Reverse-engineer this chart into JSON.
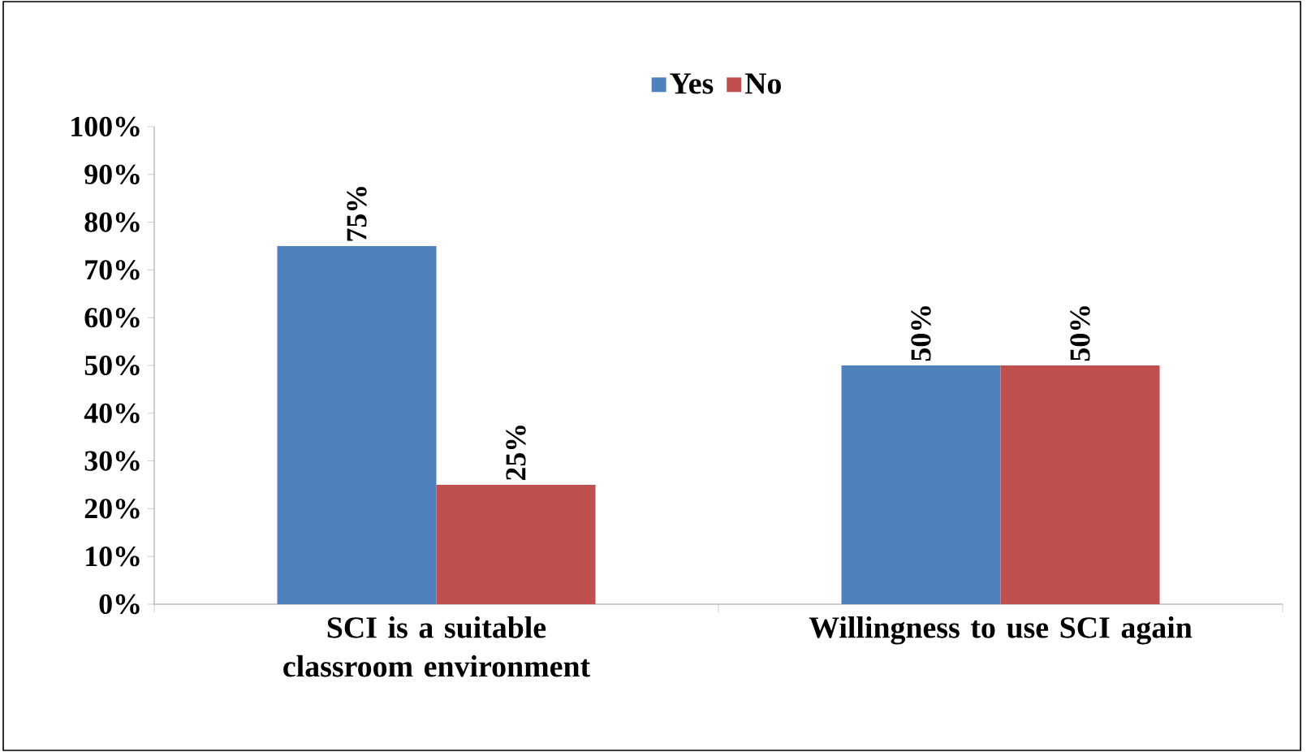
{
  "chart_data": {
    "type": "bar",
    "categories": [
      "SCI is a suitable classroom environment",
      "Willingness to use SCI again"
    ],
    "series": [
      {
        "name": "Yes",
        "color": "#4f81bd",
        "values": [
          75,
          50
        ],
        "value_labels": [
          "75%",
          "50%"
        ]
      },
      {
        "name": "No",
        "color": "#c0504d",
        "values": [
          25,
          50
        ],
        "value_labels": [
          "25%",
          "50%"
        ]
      }
    ],
    "ylim": [
      0,
      100
    ],
    "yticks": [
      {
        "value": 0,
        "label": "0%"
      },
      {
        "value": 10,
        "label": "10%"
      },
      {
        "value": 20,
        "label": "20%"
      },
      {
        "value": 30,
        "label": "30%"
      },
      {
        "value": 40,
        "label": "40%"
      },
      {
        "value": 50,
        "label": "50%"
      },
      {
        "value": 60,
        "label": "60%"
      },
      {
        "value": 70,
        "label": "70%"
      },
      {
        "value": 80,
        "label": "80%"
      },
      {
        "value": 90,
        "label": "90%"
      },
      {
        "value": 100,
        "label": "100%"
      }
    ],
    "grid": false,
    "legend": "top"
  }
}
